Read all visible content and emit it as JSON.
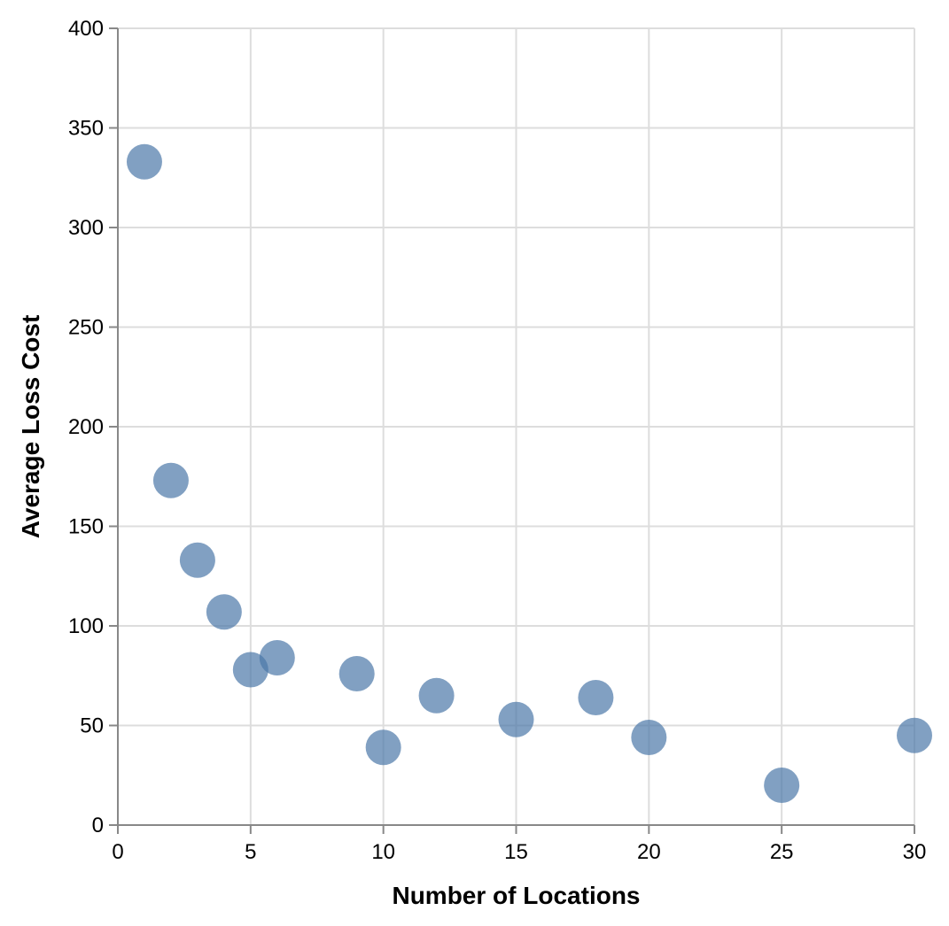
{
  "chart_data": {
    "type": "scatter",
    "title": "",
    "xlabel": "Number of Locations",
    "ylabel": "Average Loss Cost",
    "xlim": [
      0,
      30
    ],
    "ylim": [
      0,
      400
    ],
    "x_ticks": [
      0,
      5,
      10,
      15,
      20,
      25,
      30
    ],
    "y_ticks": [
      0,
      50,
      100,
      150,
      200,
      250,
      300,
      350,
      400
    ],
    "grid": true,
    "legend": "none",
    "point_color": "#4c78a8",
    "points": [
      {
        "x": 1,
        "y": 333
      },
      {
        "x": 2,
        "y": 173
      },
      {
        "x": 3,
        "y": 133
      },
      {
        "x": 4,
        "y": 107
      },
      {
        "x": 5,
        "y": 78
      },
      {
        "x": 6,
        "y": 84
      },
      {
        "x": 9,
        "y": 76
      },
      {
        "x": 10,
        "y": 39
      },
      {
        "x": 12,
        "y": 65
      },
      {
        "x": 15,
        "y": 53
      },
      {
        "x": 18,
        "y": 64
      },
      {
        "x": 20,
        "y": 44
      },
      {
        "x": 25,
        "y": 20
      },
      {
        "x": 30,
        "y": 45
      }
    ]
  }
}
